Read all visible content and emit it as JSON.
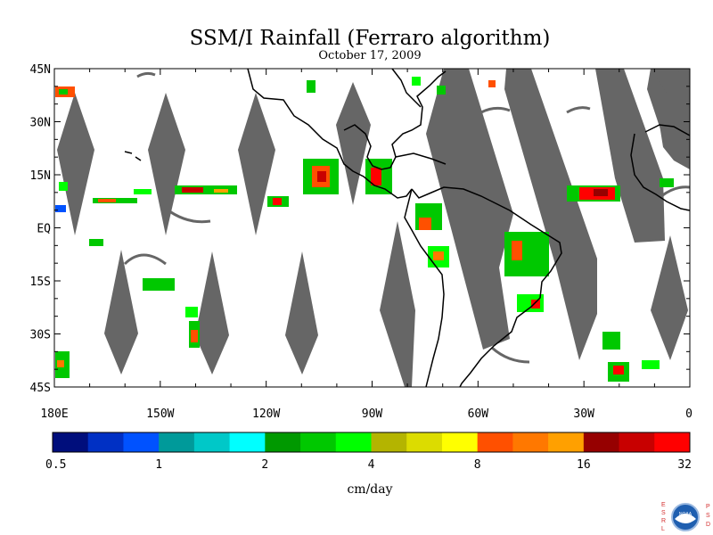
{
  "title": "SSM/I Rainfall (Ferraro algorithm)",
  "subtitle": "October 17, 2009",
  "map": {
    "lat_labels": [
      "45N",
      "30N",
      "15N",
      "EQ",
      "15S",
      "30S",
      "45S"
    ],
    "lat_values": [
      45,
      30,
      15,
      0,
      -15,
      -30,
      -45
    ],
    "lon_labels": [
      "180E",
      "150W",
      "120W",
      "90W",
      "60W",
      "30W",
      "0"
    ],
    "lon_values": [
      -180,
      -150,
      -120,
      -90,
      -60,
      -30,
      0
    ],
    "lon_range": [
      -180,
      0
    ],
    "lat_range": [
      -45,
      45
    ],
    "no_data_color": "#666666",
    "coastline_color": "#000000"
  },
  "colorbar": {
    "ticks": [
      "0.5",
      "1",
      "2",
      "4",
      "8",
      "16",
      "32"
    ],
    "unit": "cm/day",
    "colors": [
      "#000e7c",
      "#0030c4",
      "#0052ff",
      "#009a9a",
      "#00c8c8",
      "#00ffff",
      "#009900",
      "#00c800",
      "#00ff00",
      "#b4b400",
      "#dcdc00",
      "#ffff00",
      "#ff5000",
      "#ff7800",
      "#ffa000",
      "#960000",
      "#c80000",
      "#ff0000"
    ]
  },
  "logo": {
    "left_letters": [
      "E",
      "S",
      "R",
      "L"
    ],
    "right_letters": [
      "P",
      "S",
      "D"
    ],
    "emblem": "NOAA",
    "emblem_color": "#1f5fb0",
    "letter_color": "#d43030"
  }
}
